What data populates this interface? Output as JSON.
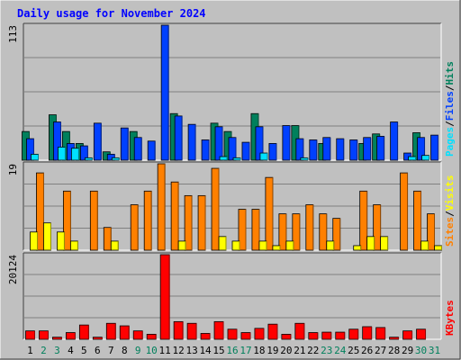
{
  "chart_data": [
    {
      "type": "bar",
      "title": "Daily usage for November 2024",
      "categories": [
        "1",
        "2",
        "3",
        "4",
        "5",
        "6",
        "7",
        "8",
        "9",
        "10",
        "11",
        "12",
        "13",
        "14",
        "15",
        "16",
        "17",
        "18",
        "19",
        "20",
        "21",
        "22",
        "23",
        "24",
        "25",
        "26",
        "27",
        "28",
        "29",
        "30",
        "31"
      ],
      "weekend_days": [
        "2",
        "3",
        "9",
        "10",
        "16",
        "17",
        "23",
        "24",
        "30",
        "31"
      ],
      "ymax_label": "113",
      "ylim": [
        0,
        113
      ],
      "right_axis_label": [
        "Pages",
        "Files",
        "Hits"
      ],
      "series": [
        {
          "name": "Hits",
          "color": "#00805c",
          "values": [
            24,
            0,
            38,
            24,
            14,
            0,
            7,
            0,
            24,
            0,
            0,
            39,
            0,
            0,
            31,
            24,
            0,
            39,
            0,
            0,
            29,
            0,
            14,
            0,
            0,
            14,
            22,
            0,
            0,
            23,
            0
          ]
        },
        {
          "name": "Files",
          "color": "#0040ff",
          "values": [
            18,
            0,
            32,
            14,
            12,
            31,
            5,
            27,
            19,
            16,
            113,
            37,
            30,
            17,
            28,
            19,
            15,
            28,
            14,
            29,
            18,
            17,
            19,
            18,
            17,
            19,
            20,
            32,
            6,
            19,
            21
          ]
        },
        {
          "name": "Pages",
          "color": "#00e0ff",
          "values": [
            5,
            0,
            11,
            10,
            2,
            0,
            2,
            0,
            0,
            0,
            0,
            0,
            0,
            0,
            3,
            2,
            0,
            6,
            0,
            0,
            2,
            0,
            0,
            0,
            0,
            0,
            0,
            0,
            3,
            4,
            0
          ]
        }
      ]
    },
    {
      "type": "bar",
      "ymax_label": "19",
      "ylim": [
        0,
        19
      ],
      "right_axis_label": [
        "Sites",
        "Visits"
      ],
      "series": [
        {
          "name": "Visits",
          "color": "#ff8000",
          "values": [
            0,
            17,
            0,
            13,
            0,
            13,
            5,
            0,
            10,
            13,
            19,
            15,
            12,
            12,
            18,
            0,
            9,
            9,
            16,
            8,
            8,
            10,
            8,
            7,
            0,
            13,
            10,
            0,
            17,
            13,
            8
          ]
        },
        {
          "name": "Sites",
          "color": "#ffff00",
          "values": [
            4,
            6,
            4,
            2,
            0,
            0,
            2,
            0,
            0,
            0,
            0,
            2,
            0,
            0,
            3,
            2,
            0,
            2,
            1,
            2,
            0,
            0,
            2,
            0,
            1,
            3,
            3,
            0,
            0,
            2,
            1
          ]
        }
      ]
    },
    {
      "type": "bar",
      "ymax_label": "20124",
      "ylim": [
        0,
        20124
      ],
      "right_axis_label": [
        "KBytes"
      ],
      "series": [
        {
          "name": "KBytes",
          "color": "#ff0000",
          "values": [
            2000,
            2000,
            500,
            1600,
            3400,
            500,
            3800,
            3200,
            2000,
            1200,
            20124,
            4200,
            3800,
            1400,
            4200,
            2400,
            1600,
            2600,
            3600,
            1200,
            3800,
            1600,
            1700,
            1700,
            2400,
            3000,
            2800,
            500,
            2000,
            2400,
            0
          ]
        }
      ]
    }
  ],
  "colors": {
    "background": "#c0c0c0",
    "plot_bg": "#c0c0c0",
    "title": "#0000ff",
    "weekday_label": "#000000",
    "weekend_label": "#00805c",
    "gridline": "#808080"
  }
}
